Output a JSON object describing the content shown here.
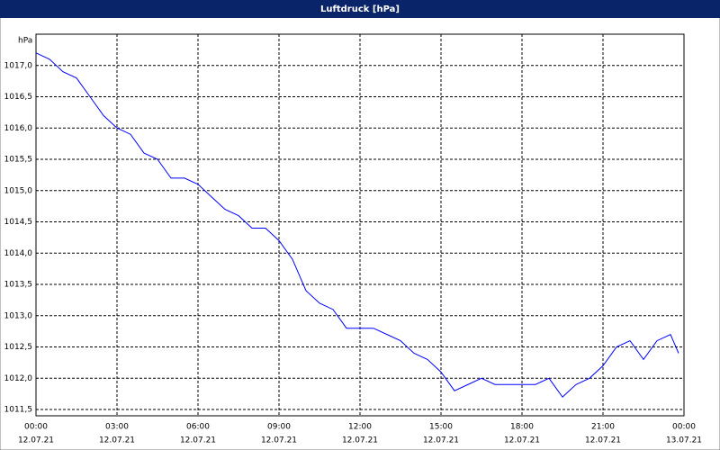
{
  "chart_data": {
    "type": "line",
    "title": "Luftdruck [hPa]",
    "y_unit": "hPa",
    "x": [
      0,
      0.5,
      1,
      1.5,
      2,
      2.5,
      3,
      3.5,
      4,
      4.5,
      5,
      5.5,
      6,
      6.5,
      7,
      7.5,
      8,
      8.5,
      9,
      9.5,
      10,
      10.5,
      11,
      11.5,
      12,
      12.5,
      13,
      13.5,
      14,
      14.5,
      15,
      15.5,
      16,
      16.5,
      17,
      17.5,
      18,
      18.5,
      19,
      19.5,
      20,
      20.5,
      21,
      21.5,
      22,
      22.5,
      23,
      23.5,
      23.8
    ],
    "series": [
      {
        "name": "Luftdruck",
        "color": "#0000ff",
        "values": [
          1017.2,
          1017.1,
          1016.9,
          1016.8,
          1016.5,
          1016.2,
          1016.0,
          1015.9,
          1015.6,
          1015.5,
          1015.2,
          1015.2,
          1015.1,
          1014.9,
          1014.7,
          1014.6,
          1014.4,
          1014.4,
          1014.2,
          1013.9,
          1013.4,
          1013.2,
          1013.1,
          1012.8,
          1012.8,
          1012.8,
          1012.7,
          1012.6,
          1012.4,
          1012.3,
          1012.1,
          1011.8,
          1011.9,
          1012.0,
          1011.9,
          1011.9,
          1011.9,
          1011.9,
          1012.0,
          1011.7,
          1011.9,
          1012.0,
          1012.2,
          1012.5,
          1012.6,
          1012.3,
          1012.6,
          1012.7,
          1012.4
        ]
      }
    ],
    "xlim": [
      0,
      24
    ],
    "xticks": [
      {
        "value": 0,
        "label": "00:00",
        "date": "12.07.21"
      },
      {
        "value": 3,
        "label": "03:00",
        "date": "12.07.21"
      },
      {
        "value": 6,
        "label": "06:00",
        "date": "12.07.21"
      },
      {
        "value": 9,
        "label": "09:00",
        "date": "12.07.21"
      },
      {
        "value": 12,
        "label": "12:00",
        "date": "12.07.21"
      },
      {
        "value": 15,
        "label": "15:00",
        "date": "12.07.21"
      },
      {
        "value": 18,
        "label": "18:00",
        "date": "12.07.21"
      },
      {
        "value": 21,
        "label": "21:00",
        "date": "12.07.21"
      },
      {
        "value": 24,
        "label": "00:00",
        "date": "13.07.21"
      }
    ],
    "ylim": [
      1011.4,
      1017.5
    ],
    "yticks": [
      {
        "value": 1011.5,
        "label": "1011,5"
      },
      {
        "value": 1012,
        "label": "1012,0"
      },
      {
        "value": 1012.5,
        "label": "1012,5"
      },
      {
        "value": 1013,
        "label": "1013,0"
      },
      {
        "value": 1013.5,
        "label": "1013,5"
      },
      {
        "value": 1014,
        "label": "1014,0"
      },
      {
        "value": 1014.5,
        "label": "1014,5"
      },
      {
        "value": 1015,
        "label": "1015,0"
      },
      {
        "value": 1015.5,
        "label": "1015,5"
      },
      {
        "value": 1016,
        "label": "1016,0"
      },
      {
        "value": 1016.5,
        "label": "1016,5"
      },
      {
        "value": 1017,
        "label": "1017,0"
      }
    ],
    "grid": true
  }
}
